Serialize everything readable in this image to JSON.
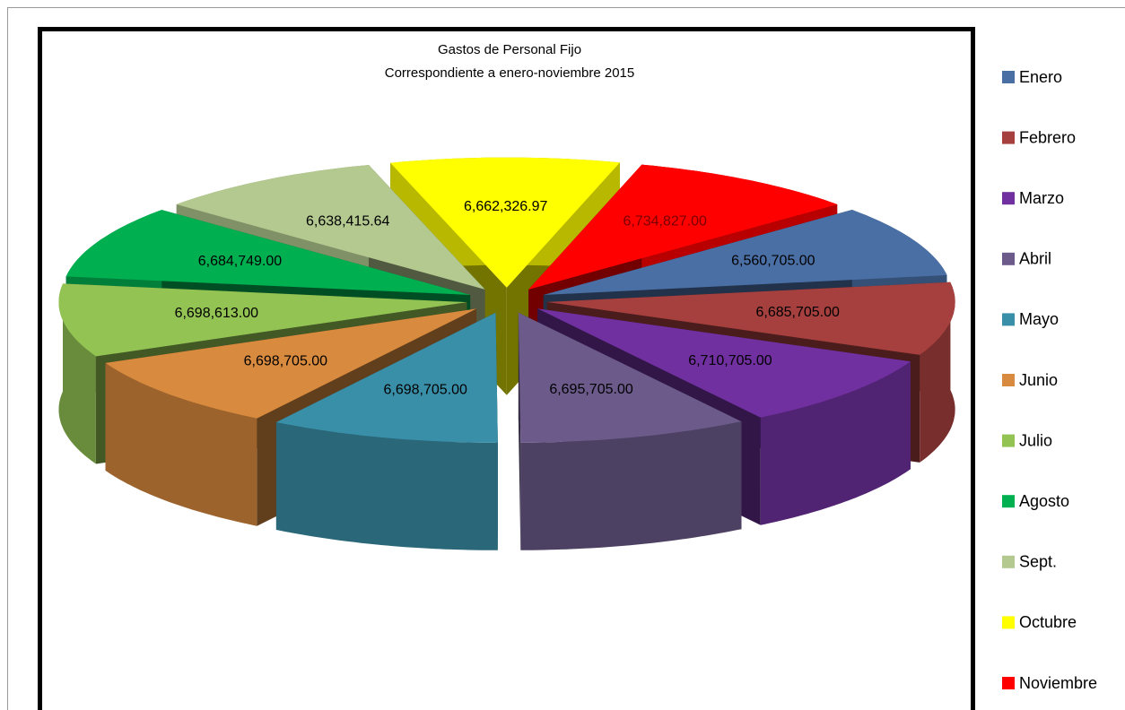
{
  "chart_data": {
    "type": "pie",
    "title": "Gastos de Personal Fijo",
    "subtitle": "Correspondiente a enero-noviembre  2015",
    "categories": [
      "Enero",
      "Febrero",
      "Marzo",
      "Abril",
      "Mayo",
      "Junio",
      "Julio",
      "Agosto",
      "Sept.",
      "Octubre",
      "Noviembre"
    ],
    "values": [
      6560705.0,
      6685705.0,
      6710705.0,
      6695705.0,
      6698705.0,
      6698705.0,
      6698613.0,
      6684749.0,
      6638415.64,
      6662326.97,
      6734827.0
    ],
    "value_labels": [
      "6,560,705.00",
      "6,685,705.00",
      "6,710,705.00",
      "6,695,705.00",
      "6,698,705.00",
      "6,698,705.00",
      "6,698,613.00",
      "6,684,749.00",
      "6,638,415.64",
      "6,662,326.97",
      "6,734,827.00"
    ],
    "colors": [
      "#4a6fa5",
      "#a5403e",
      "#7030a0",
      "#6b5a8a",
      "#3a8fa8",
      "#d88a3f",
      "#92c353",
      "#00b050",
      "#b3c98f",
      "#ffff00",
      "#ff0000"
    ],
    "legend": "right"
  }
}
